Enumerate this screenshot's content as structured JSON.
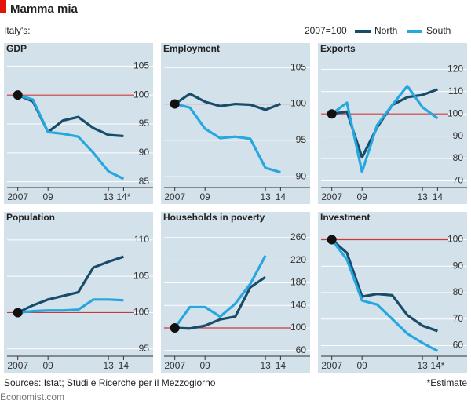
{
  "title": "Mamma mia",
  "subtitle": "Italy's:",
  "index_note": "2007=100",
  "source": "Sources: Istat; Studi e Ricerche per il Mezzogiorno",
  "footnote": "*Estimate",
  "brand": "Economist.com",
  "chart_data": [
    {
      "type": "line",
      "title": "GDP",
      "x": [
        2007,
        2008,
        2009,
        2010,
        2011,
        2012,
        2013,
        2014
      ],
      "xlim": [
        2006.6,
        2014.5
      ],
      "xticks": [
        {
          "value": 2007,
          "label": "2007"
        },
        {
          "value": 2009,
          "label": "09"
        },
        {
          "value": 2013,
          "label": "13"
        },
        {
          "value": 2014,
          "label": "14*"
        }
      ],
      "ylim": [
        84,
        106
      ],
      "yticks": [
        85,
        90,
        95,
        100,
        105
      ],
      "baseline": 100,
      "grid": true,
      "series": [
        {
          "name": "North",
          "color": "#174c6a",
          "values": [
            100,
            98.9,
            93.6,
            95.6,
            96.2,
            94.3,
            93.1,
            92.9
          ]
        },
        {
          "name": "South",
          "color": "#27a7df",
          "values": [
            100,
            99.2,
            93.6,
            93.3,
            92.8,
            90.0,
            86.8,
            85.5
          ]
        }
      ]
    },
    {
      "type": "line",
      "title": "Employment",
      "x": [
        2007,
        2008,
        2009,
        2010,
        2011,
        2012,
        2013,
        2014
      ],
      "xlim": [
        2006.6,
        2014.5
      ],
      "xticks": [
        {
          "value": 2007,
          "label": "2007"
        },
        {
          "value": 2009,
          "label": "09"
        },
        {
          "value": 2013,
          "label": "13"
        },
        {
          "value": 2014,
          "label": "14"
        }
      ],
      "ylim": [
        88.5,
        106
      ],
      "yticks": [
        90,
        95,
        100,
        105
      ],
      "baseline": 100,
      "grid": true,
      "series": [
        {
          "name": "North",
          "color": "#174c6a",
          "values": [
            100,
            101.4,
            100.3,
            99.7,
            100.0,
            99.9,
            99.2,
            100.0
          ]
        },
        {
          "name": "South",
          "color": "#27a7df",
          "values": [
            100,
            99.5,
            96.6,
            95.3,
            95.5,
            95.2,
            91.2,
            90.6
          ]
        }
      ]
    },
    {
      "type": "line",
      "title": "Exports",
      "x": [
        2007,
        2008,
        2009,
        2010,
        2011,
        2012,
        2013,
        2014
      ],
      "xlim": [
        2006.6,
        2014.5
      ],
      "xticks": [
        {
          "value": 2007,
          "label": "2007"
        },
        {
          "value": 2009,
          "label": "09"
        },
        {
          "value": 2013,
          "label": "13"
        },
        {
          "value": 2014,
          "label": "14"
        }
      ],
      "ylim": [
        67,
        124
      ],
      "yticks": [
        70,
        80,
        90,
        100,
        110,
        120
      ],
      "baseline": 100,
      "grid": true,
      "series": [
        {
          "name": "North",
          "color": "#174c6a",
          "values": [
            100,
            101,
            80.5,
            94,
            104,
            107.5,
            108.5,
            111
          ]
        },
        {
          "name": "South",
          "color": "#27a7df",
          "values": [
            100,
            105,
            74,
            95,
            104,
            112.5,
            103,
            98
          ]
        }
      ]
    },
    {
      "type": "line",
      "title": "Population",
      "x": [
        2007,
        2008,
        2009,
        2010,
        2011,
        2012,
        2013,
        2014
      ],
      "xlim": [
        2006.6,
        2014.5
      ],
      "xticks": [
        {
          "value": 2007,
          "label": "2007"
        },
        {
          "value": 2009,
          "label": "09"
        },
        {
          "value": 2013,
          "label": "13"
        },
        {
          "value": 2014,
          "label": "14"
        }
      ],
      "ylim": [
        94,
        111.5
      ],
      "yticks": [
        95,
        100,
        105,
        110
      ],
      "baseline": 100,
      "grid": true,
      "series": [
        {
          "name": "North",
          "color": "#174c6a",
          "values": [
            100,
            101.0,
            101.8,
            102.3,
            102.8,
            106.2,
            107.0,
            107.7
          ]
        },
        {
          "name": "South",
          "color": "#27a7df",
          "values": [
            100,
            100.2,
            100.3,
            100.3,
            100.4,
            101.8,
            101.8,
            101.7
          ]
        }
      ]
    },
    {
      "type": "line",
      "title": "Households in poverty",
      "x": [
        2007,
        2008,
        2009,
        2010,
        2011,
        2012,
        2013,
        2014
      ],
      "xlim": [
        2006.6,
        2014.5
      ],
      "xticks": [
        {
          "value": 2007,
          "label": "2007"
        },
        {
          "value": 2009,
          "label": "09"
        },
        {
          "value": 2013,
          "label": "13"
        },
        {
          "value": 2014,
          "label": "14"
        }
      ],
      "ylim": [
        50,
        275
      ],
      "yticks": [
        60,
        100,
        140,
        180,
        220,
        260
      ],
      "baseline": 100,
      "grid": true,
      "series": [
        {
          "name": "North",
          "color": "#174c6a",
          "values": [
            100,
            99,
            104,
            115,
            120,
            172,
            190,
            null
          ]
        },
        {
          "name": "South",
          "color": "#27a7df",
          "values": [
            100,
            137,
            137,
            120,
            143,
            178,
            228,
            null
          ]
        }
      ]
    },
    {
      "type": "line",
      "title": "Investment",
      "x": [
        2007,
        2008,
        2009,
        2010,
        2011,
        2012,
        2013,
        2014
      ],
      "xlim": [
        2006.6,
        2014.5
      ],
      "xticks": [
        {
          "value": 2007,
          "label": "2007"
        },
        {
          "value": 2009,
          "label": "09"
        },
        {
          "value": 2013,
          "label": "13"
        },
        {
          "value": 2014,
          "label": "14*"
        }
      ],
      "ylim": [
        56,
        104
      ],
      "yticks": [
        60,
        70,
        80,
        90,
        100
      ],
      "baseline": 100,
      "grid": true,
      "series": [
        {
          "name": "North",
          "color": "#174c6a",
          "values": [
            100,
            95,
            78.5,
            79.5,
            79,
            71.5,
            67.5,
            65.5
          ]
        },
        {
          "name": "South",
          "color": "#27a7df",
          "values": [
            100,
            92.5,
            77,
            75.5,
            70,
            64.5,
            61,
            58
          ]
        }
      ]
    }
  ]
}
